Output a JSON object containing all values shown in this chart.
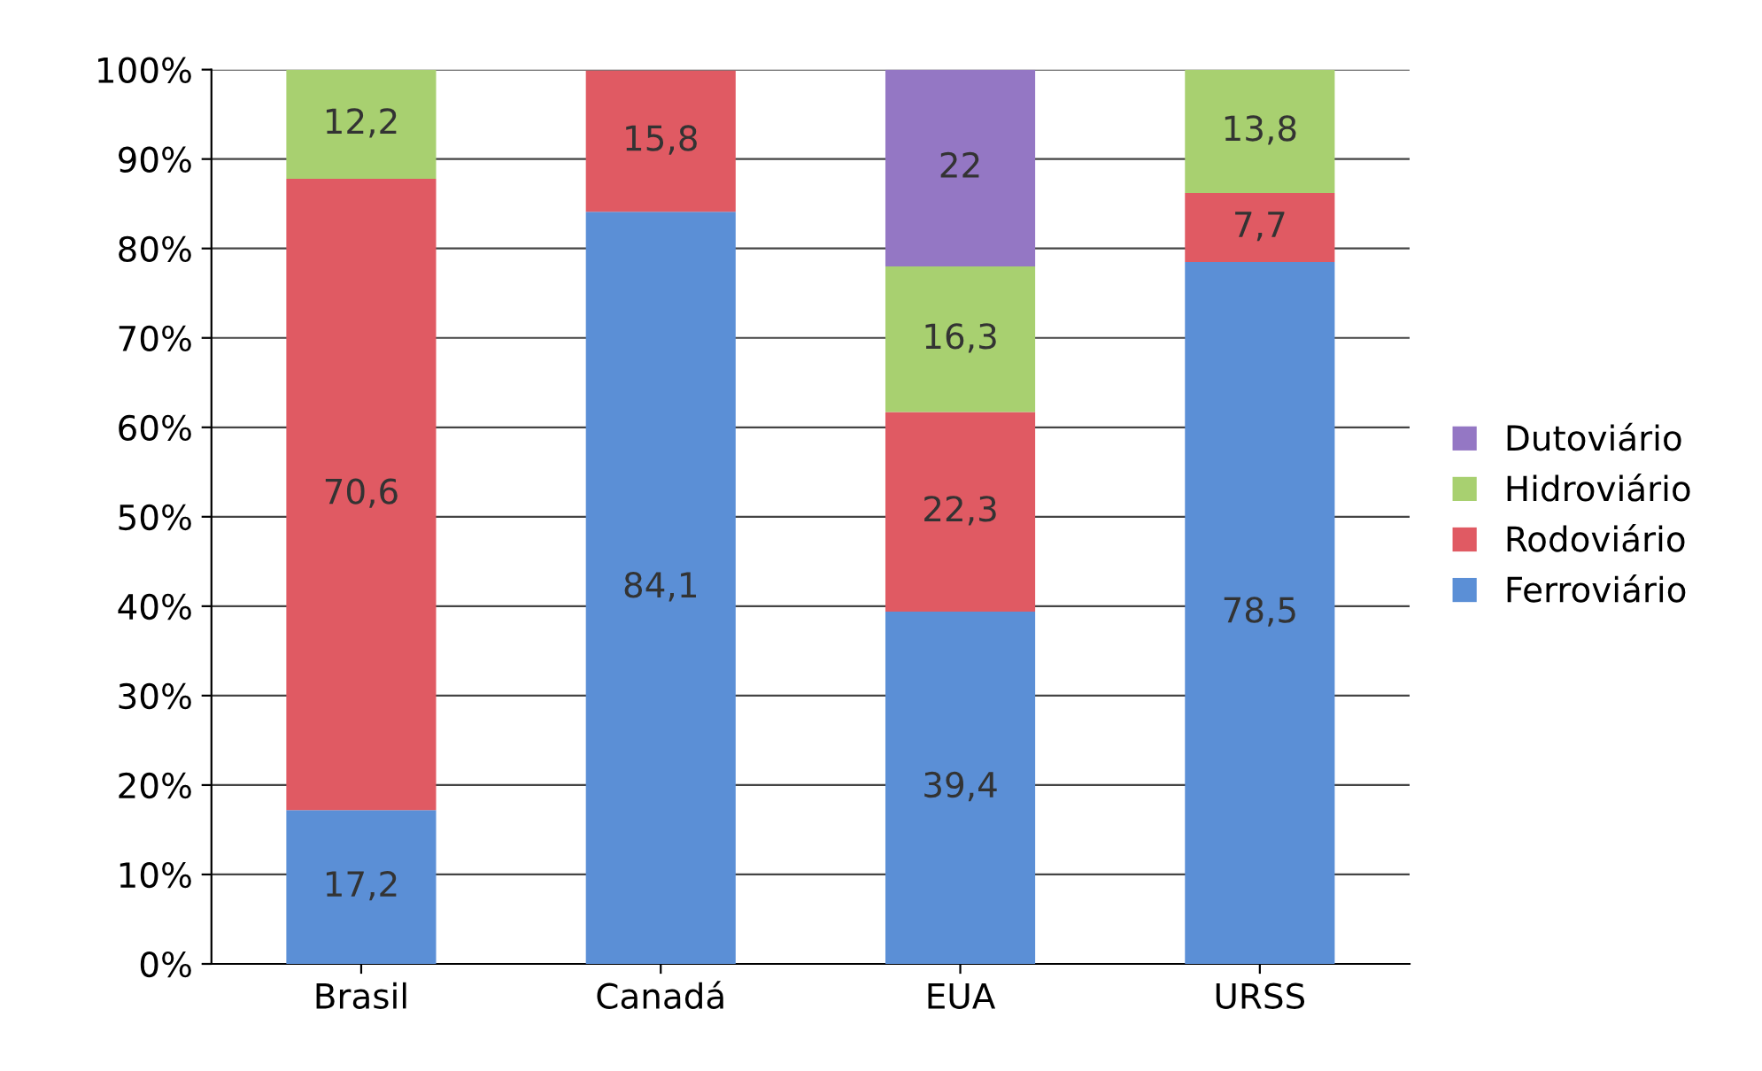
{
  "chart_data": {
    "type": "bar",
    "stacked": true,
    "categories": [
      "Brasil",
      "Canadá",
      "EUA",
      "URSS"
    ],
    "series": [
      {
        "name": "Ferroviário",
        "color": "#5b8fd6",
        "values": [
          17.2,
          84.1,
          39.4,
          78.5
        ],
        "value_labels": [
          "17,2",
          "84,1",
          "39,4",
          "78,5"
        ]
      },
      {
        "name": "Rodoviário",
        "color": "#e05a63",
        "values": [
          70.6,
          15.8,
          22.3,
          7.7
        ],
        "value_labels": [
          "70,6",
          "15,8",
          "22,3",
          "7,7"
        ]
      },
      {
        "name": "Hidroviário",
        "color": "#a8d070",
        "values": [
          12.2,
          null,
          16.3,
          13.8
        ],
        "value_labels": [
          "12,2",
          null,
          "16,3",
          "13,8"
        ]
      },
      {
        "name": "Dutoviário",
        "color": "#9477c4",
        "values": [
          null,
          null,
          22,
          null
        ],
        "value_labels": [
          null,
          null,
          "22",
          null
        ]
      }
    ],
    "ylim": [
      0,
      100
    ],
    "yticks": [
      {
        "value": 0,
        "label": "0%"
      },
      {
        "value": 10,
        "label": "10%"
      },
      {
        "value": 20,
        "label": "20%"
      },
      {
        "value": 30,
        "label": "30%"
      },
      {
        "value": 40,
        "label": "40%"
      },
      {
        "value": 50,
        "label": "50%"
      },
      {
        "value": 60,
        "label": "60%"
      },
      {
        "value": 70,
        "label": "70%"
      },
      {
        "value": 80,
        "label": "80%"
      },
      {
        "value": 90,
        "label": "90%"
      },
      {
        "value": 100,
        "label": "100%"
      }
    ],
    "grid": "y",
    "legend": "right"
  }
}
